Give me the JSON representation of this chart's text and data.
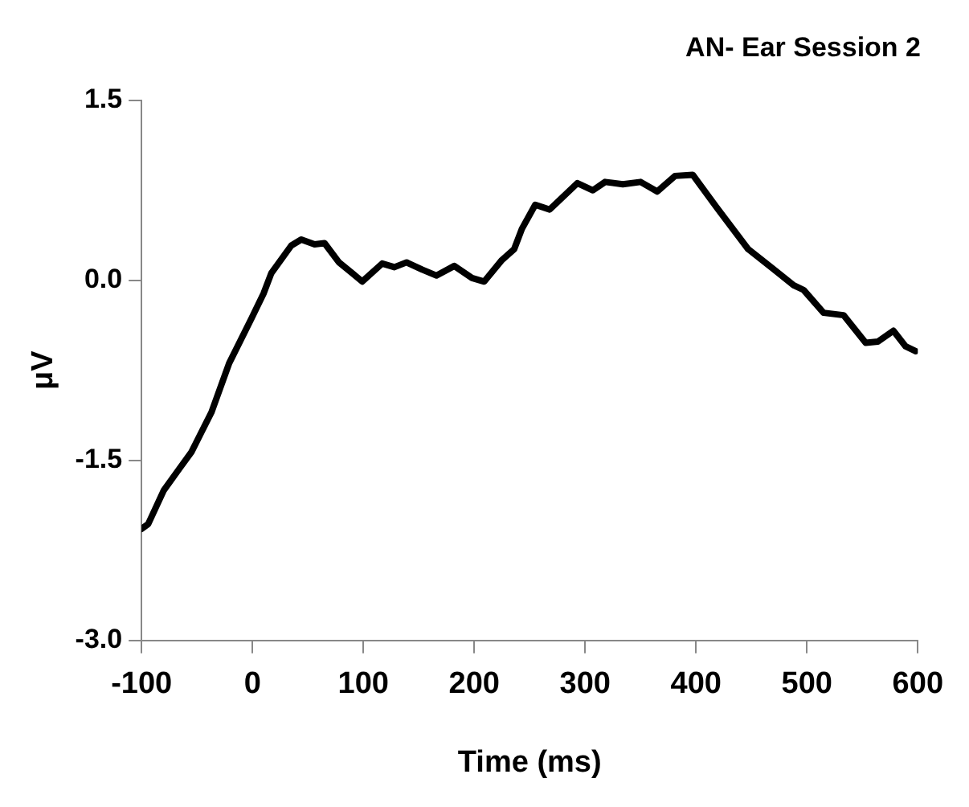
{
  "chart_data": {
    "type": "line",
    "title": "AN- Ear Session 2",
    "xlabel": "Time (ms)",
    "ylabel": "μV",
    "xlim": [
      -100,
      600
    ],
    "xticks": [
      -100,
      0,
      100,
      200,
      300,
      400,
      500,
      600
    ],
    "ylim": [
      -3.0,
      1.5
    ],
    "yticks": [
      {
        "value": 1.5,
        "label": "1.5"
      },
      {
        "value": 0,
        "label": "0.0"
      },
      {
        "value": -1.5,
        "label": "-1.5"
      },
      {
        "value": -3.0,
        "label": "-3.0"
      }
    ],
    "grid": false,
    "legend": false,
    "marker": "none",
    "line_style": "solid",
    "series": [
      {
        "color": "#000000",
        "x": [
          -100,
          -94,
          -80,
          -66,
          -55,
          -37,
          -21,
          -1,
          10,
          17,
          35,
          44,
          56,
          65,
          78,
          90,
          99,
          117,
          128,
          139,
          153,
          166,
          182,
          198,
          209,
          225,
          236,
          243,
          255,
          268,
          293,
          307,
          318,
          334,
          350,
          365,
          381,
          397,
          420,
          447,
          469,
          488,
          497,
          515,
          533,
          553,
          564,
          578,
          589,
          598
        ],
        "values": [
          -2.07,
          -2.03,
          -1.75,
          -1.57,
          -1.43,
          -1.1,
          -0.69,
          -0.32,
          -0.11,
          0.06,
          0.29,
          0.34,
          0.3,
          0.31,
          0.15,
          0.06,
          -0.01,
          0.14,
          0.11,
          0.15,
          0.09,
          0.04,
          0.12,
          0.02,
          -0.01,
          0.17,
          0.26,
          0.43,
          0.63,
          0.59,
          0.81,
          0.75,
          0.82,
          0.8,
          0.82,
          0.74,
          0.87,
          0.88,
          0.59,
          0.26,
          0.1,
          -0.04,
          -0.08,
          -0.27,
          -0.29,
          -0.52,
          -0.51,
          -0.42,
          -0.55,
          -0.59
        ]
      }
    ]
  }
}
